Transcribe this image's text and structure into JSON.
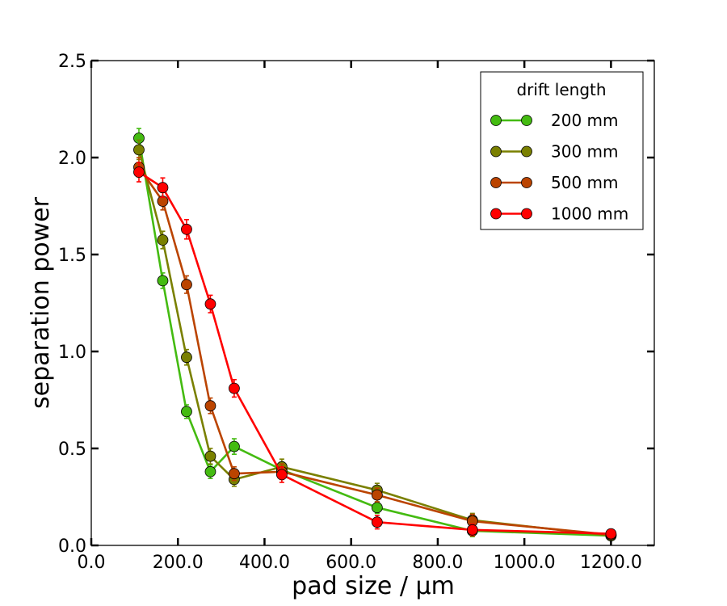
{
  "chart_data": {
    "type": "line",
    "xlabel": "pad size / μm",
    "ylabel": "separation power",
    "xlim": [
      0,
      1300
    ],
    "ylim": [
      0,
      2.5
    ],
    "xticks": [
      0,
      200,
      400,
      600,
      800,
      1000,
      1200
    ],
    "xtick_labels": [
      "0.0",
      "200.0",
      "400.0",
      "600.0",
      "800.0",
      "1000.0",
      "1200.0"
    ],
    "yticks": [
      0,
      0.5,
      1.0,
      1.5,
      2.0,
      2.5
    ],
    "ytick_labels": [
      "0.0",
      "0.5",
      "1.0",
      "1.5",
      "2.0",
      "2.5"
    ],
    "legend_title": "drift length",
    "legend_position": "top-right",
    "x": [
      110,
      165,
      220,
      275,
      330,
      440,
      660,
      880,
      1200
    ],
    "series": [
      {
        "name": "200 mm",
        "color": "#44bb11",
        "values": [
          2.1,
          1.365,
          0.69,
          0.38,
          0.51,
          0.39,
          0.195,
          0.075,
          0.05
        ],
        "errors": [
          0.05,
          0.04,
          0.035,
          0.035,
          0.04,
          0.04,
          0.03,
          0.03,
          0.02
        ]
      },
      {
        "name": "300 mm",
        "color": "#7a8000",
        "values": [
          2.04,
          1.575,
          0.97,
          0.46,
          0.34,
          0.405,
          0.285,
          0.13,
          0.05
        ],
        "errors": [
          0.05,
          0.045,
          0.04,
          0.04,
          0.035,
          0.04,
          0.035,
          0.035,
          0.02
        ]
      },
      {
        "name": "500 mm",
        "color": "#bb4400",
        "values": [
          1.95,
          1.775,
          1.345,
          0.72,
          0.37,
          0.38,
          0.26,
          0.125,
          0.055
        ],
        "errors": [
          0.05,
          0.045,
          0.045,
          0.04,
          0.035,
          0.04,
          0.035,
          0.035,
          0.02
        ]
      },
      {
        "name": "1000 mm",
        "color": "#ff0000",
        "values": [
          1.925,
          1.845,
          1.63,
          1.245,
          0.81,
          0.365,
          0.12,
          0.08,
          0.06
        ],
        "errors": [
          0.05,
          0.05,
          0.05,
          0.045,
          0.045,
          0.04,
          0.035,
          0.03,
          0.02
        ]
      }
    ]
  }
}
